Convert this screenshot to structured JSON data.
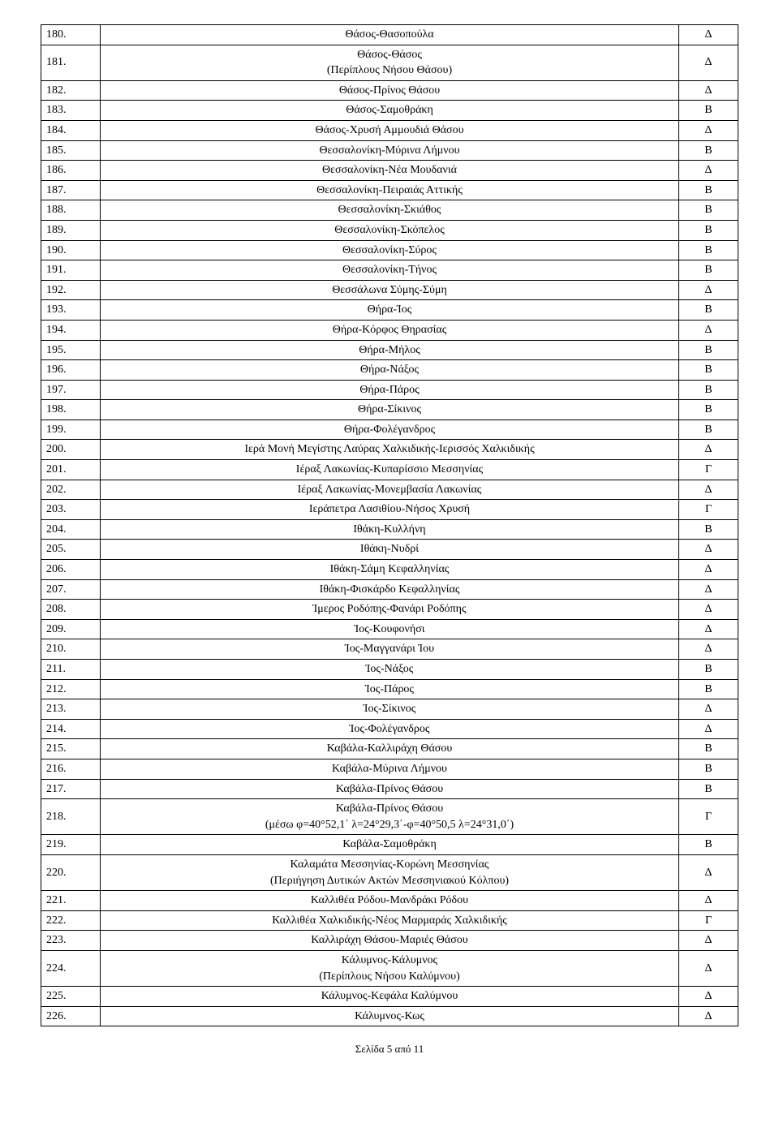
{
  "rows": [
    {
      "num": "180.",
      "route": "Θάσος-Θασοπούλα",
      "cat": "Δ"
    },
    {
      "num": "181.",
      "route": "Θάσος-Θάσος<br>(Περίπλους Νήσου Θάσου)",
      "cat": "Δ"
    },
    {
      "num": "182.",
      "route": "Θάσος-Πρίνος Θάσου",
      "cat": "Δ"
    },
    {
      "num": "183.",
      "route": "Θάσος-Σαμοθράκη",
      "cat": "Β"
    },
    {
      "num": "184.",
      "route": "Θάσος-Χρυσή Αμμουδιά Θάσου",
      "cat": "Δ"
    },
    {
      "num": "185.",
      "route": "Θεσσαλονίκη-Μύρινα Λήμνου",
      "cat": "Β"
    },
    {
      "num": "186.",
      "route": "Θεσσαλονίκη-Νέα Μουδανιά",
      "cat": "Δ"
    },
    {
      "num": "187.",
      "route": "Θεσσαλονίκη-Πειραιάς Αττικής",
      "cat": "Β"
    },
    {
      "num": "188.",
      "route": "Θεσσαλονίκη-Σκιάθος",
      "cat": "Β"
    },
    {
      "num": "189.",
      "route": "Θεσσαλονίκη-Σκόπελος",
      "cat": "Β"
    },
    {
      "num": "190.",
      "route": "Θεσσαλονίκη-Σύρος",
      "cat": "Β"
    },
    {
      "num": "191.",
      "route": "Θεσσαλονίκη-Τήνος",
      "cat": "Β"
    },
    {
      "num": "192.",
      "route": "Θεσσάλωνα Σύμης-Σύμη",
      "cat": "Δ"
    },
    {
      "num": "193.",
      "route": "Θήρα-Ίος",
      "cat": "Β"
    },
    {
      "num": "194.",
      "route": "Θήρα-Κόρφος Θηρασίας",
      "cat": "Δ"
    },
    {
      "num": "195.",
      "route": "Θήρα-Μήλος",
      "cat": "Β"
    },
    {
      "num": "196.",
      "route": "Θήρα-Νάξος",
      "cat": "Β"
    },
    {
      "num": "197.",
      "route": "Θήρα-Πάρος",
      "cat": "Β"
    },
    {
      "num": "198.",
      "route": "Θήρα-Σίκινος",
      "cat": "Β"
    },
    {
      "num": "199.",
      "route": "Θήρα-Φολέγανδρος",
      "cat": "Β"
    },
    {
      "num": "200.",
      "route": "Ιερά Μονή Μεγίστης Λαύρας Χαλκιδικής-Ιερισσός Χαλκιδικής",
      "cat": "Δ"
    },
    {
      "num": "201.",
      "route": "Ιέραξ Λακωνίας-Κυπαρίσσιο Μεσσηνίας",
      "cat": "Γ"
    },
    {
      "num": "202.",
      "route": "Ιέραξ Λακωνίας-Μονεμβασία Λακωνίας",
      "cat": "Δ"
    },
    {
      "num": "203.",
      "route": "Ιεράπετρα Λασιθίου-Νήσος Χρυσή",
      "cat": "Γ"
    },
    {
      "num": "204.",
      "route": "Ιθάκη-Κυλλήνη",
      "cat": "Β"
    },
    {
      "num": "205.",
      "route": "Ιθάκη-Νυδρί",
      "cat": "Δ"
    },
    {
      "num": "206.",
      "route": "Ιθάκη-Σάμη Κεφαλληνίας",
      "cat": "Δ"
    },
    {
      "num": "207.",
      "route": "Ιθάκη-Φισκάρδο Κεφαλληνίας",
      "cat": "Δ"
    },
    {
      "num": "208.",
      "route": "Ίμερος Ροδόπης-Φανάρι Ροδόπης",
      "cat": "Δ"
    },
    {
      "num": "209.",
      "route": "Ίος-Κουφονήσι",
      "cat": "Δ"
    },
    {
      "num": "210.",
      "route": "Ίος-Μαγγανάρι Ίου",
      "cat": "Δ"
    },
    {
      "num": "211.",
      "route": "Ίος-Νάξος",
      "cat": "Β"
    },
    {
      "num": "212.",
      "route": "Ίος-Πάρος",
      "cat": "Β"
    },
    {
      "num": "213.",
      "route": "Ίος-Σίκινος",
      "cat": "Δ"
    },
    {
      "num": "214.",
      "route": "Ίος-Φολέγανδρος",
      "cat": "Δ"
    },
    {
      "num": "215.",
      "route": "Καβάλα-Καλλιράχη Θάσου",
      "cat": "Β"
    },
    {
      "num": "216.",
      "route": "Καβάλα-Μύρινα Λήμνου",
      "cat": "Β"
    },
    {
      "num": "217.",
      "route": "Καβάλα-Πρίνος Θάσου",
      "cat": "Β"
    },
    {
      "num": "218.",
      "route": "Καβάλα-Πρίνος Θάσου<br>(μέσω φ=40°52,1΄ λ=24°29,3΄-φ=40°50,5 λ=24°31,0΄)",
      "cat": "Γ"
    },
    {
      "num": "219.",
      "route": "Καβάλα-Σαμοθράκη",
      "cat": "Β"
    },
    {
      "num": "220.",
      "route": "Καλαμάτα Μεσσηνίας-Κορώνη Μεσσηνίας<br>(Περιήγηση Δυτικών Ακτών Μεσσηνιακού Κόλπου)",
      "cat": "Δ"
    },
    {
      "num": "221.",
      "route": "Καλλιθέα Ρόδου-Μανδράκι Ρόδου",
      "cat": "Δ"
    },
    {
      "num": "222.",
      "route": "Καλλιθέα Χαλκιδικής-Νέος Μαρμαράς Χαλκιδικής",
      "cat": "Γ"
    },
    {
      "num": "223.",
      "route": "Καλλιράχη Θάσου-Μαριές Θάσου",
      "cat": "Δ"
    },
    {
      "num": "224.",
      "route": "Κάλυμνος-Κάλυμνος<br>(Περίπλους Νήσου Καλύμνου)",
      "cat": "Δ"
    },
    {
      "num": "225.",
      "route": "Κάλυμνος-Κεφάλα Καλύμνου",
      "cat": "Δ"
    },
    {
      "num": "226.",
      "route": "Κάλυμνος-Κως",
      "cat": "Δ"
    }
  ],
  "footer": "Σελίδα 5 από 11"
}
